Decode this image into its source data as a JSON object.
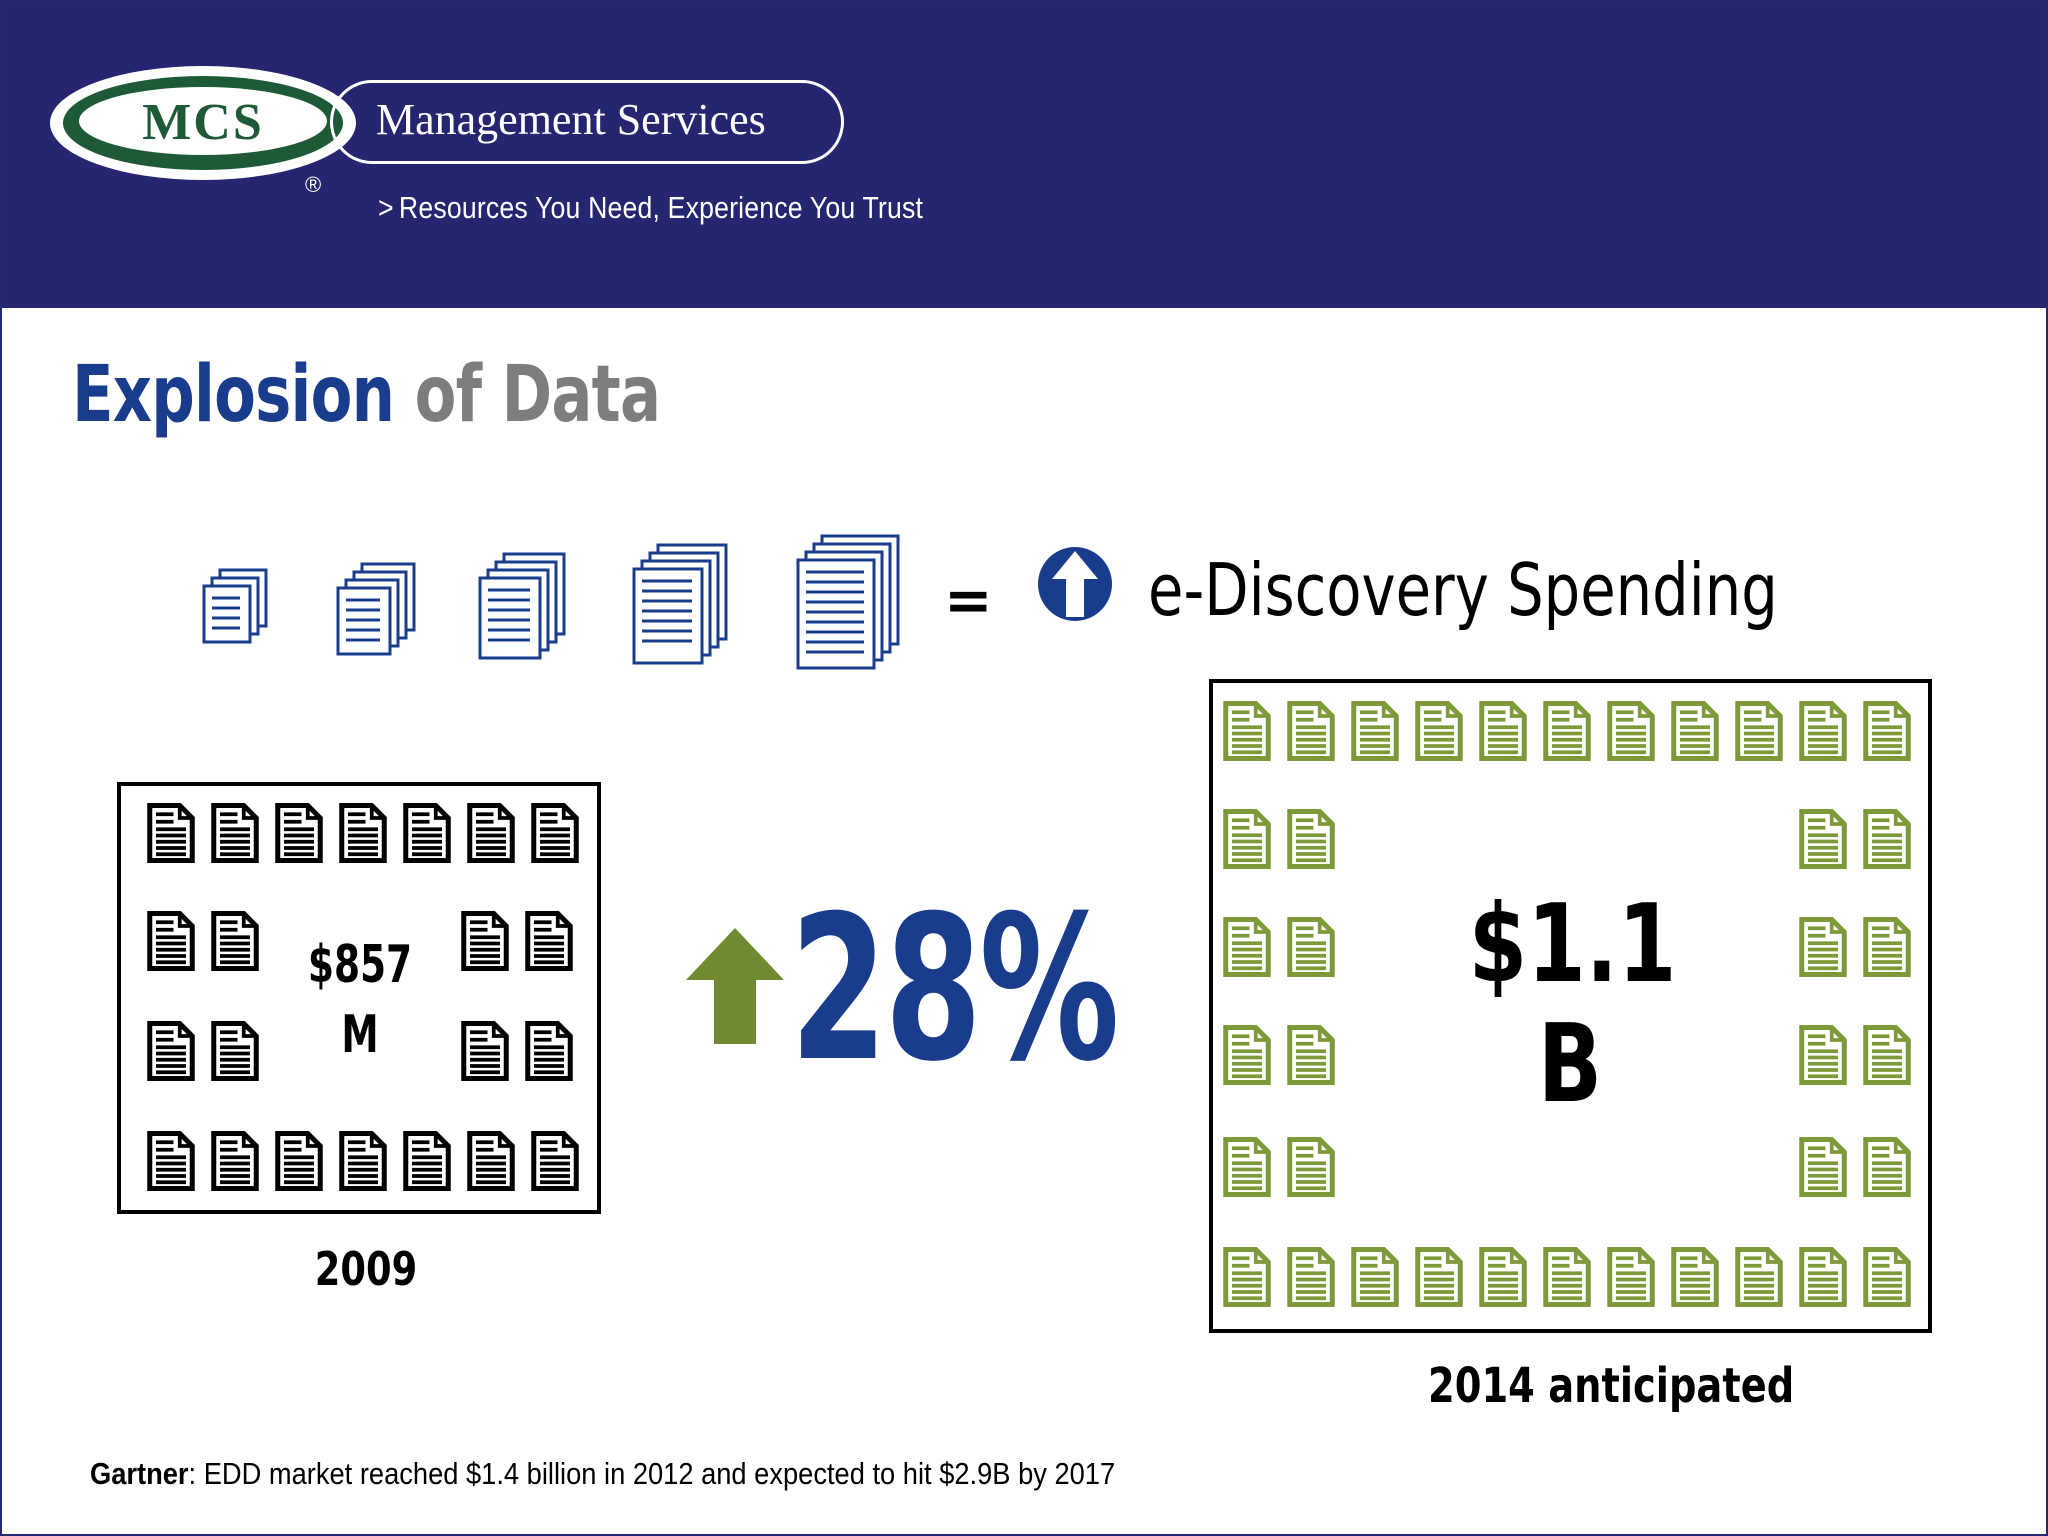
{
  "header": {
    "logo_text": "MCS",
    "company_name": "Management Services",
    "registered_mark": "®",
    "tagline_chevron": ">",
    "tagline": "Resources You Need, Experience You Trust"
  },
  "title": {
    "part1": "Explosion",
    "part2": "of Data"
  },
  "equation": {
    "equals": "=",
    "label": "e-Discovery Spending",
    "arrow_icon": "up-arrow-circle-icon"
  },
  "spending_2009": {
    "amount_line1": "$857",
    "amount_line2": "M",
    "year_label": "2009",
    "icon_color": "#000000"
  },
  "growth": {
    "value": "28%",
    "arrow_color": "#6f8a31",
    "text_color": "#1a3c8c"
  },
  "spending_2014": {
    "amount_line1": "$1.1",
    "amount_line2": "B",
    "year_label": "2014 anticipated",
    "icon_color": "#7d9a3a"
  },
  "footnote": {
    "source": "Gartner",
    "text": ": EDD market reached $1.4 billion in 2012 and expected to hit $2.9B by 2017"
  },
  "colors": {
    "header_bg": "#262670",
    "title_blue": "#1a3c8c",
    "title_gray": "#7d7d7d",
    "logo_green": "#1f5a36"
  }
}
